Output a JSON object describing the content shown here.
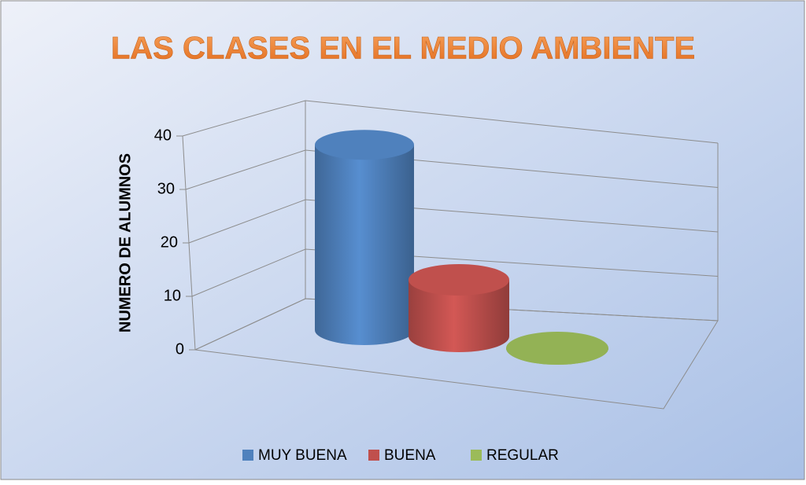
{
  "chart_data": {
    "type": "bar3d",
    "title": "LAS CLASES EN EL MEDIO AMBIENTE",
    "y_label": "NUMERO DE ALUMNOS",
    "series": [
      {
        "name": "MUY BUENA",
        "color": "#4f81bd",
        "values": [
          36
        ]
      },
      {
        "name": "BUENA",
        "color": "#c0504d",
        "values": [
          11
        ]
      },
      {
        "name": "REGULAR",
        "color": "#9bbb59",
        "values": [
          0
        ]
      }
    ],
    "ylim": [
      0,
      40
    ],
    "yticks": [
      0,
      10,
      20,
      30,
      40
    ],
    "grid": true,
    "legend": "bottom"
  }
}
